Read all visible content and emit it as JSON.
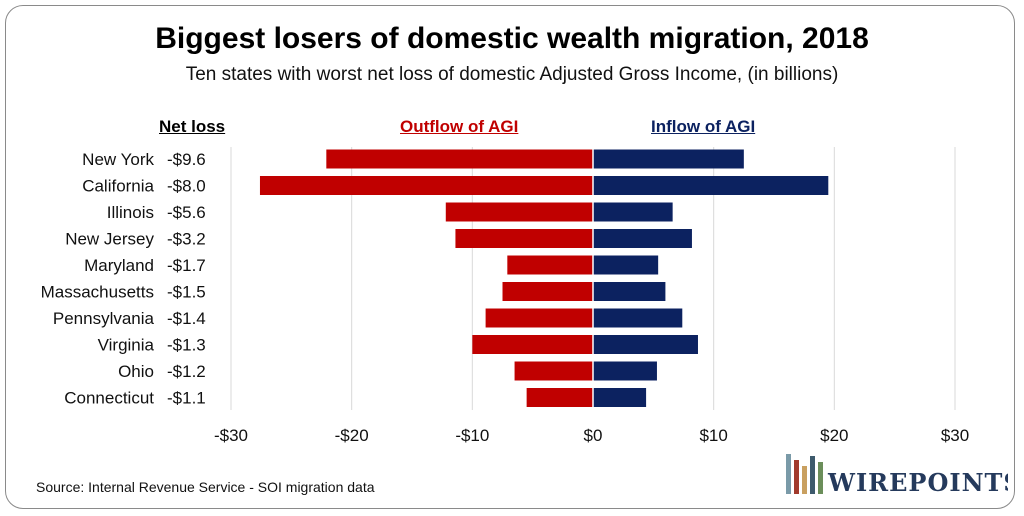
{
  "title": "Biggest losers of domestic wealth migration, 2018",
  "subtitle": "Ten states with worst net loss of domestic Adjusted Gross Income, (in billions)",
  "headers": {
    "net_loss": "Net loss",
    "outflow": "Outflow of AGI",
    "inflow": "Inflow of AGI"
  },
  "source": "Source: Internal Revenue Service - SOI migration data",
  "logo": {
    "text": "WIREPOINTS"
  },
  "chart_data": {
    "type": "bar",
    "orientation": "horizontal",
    "categories": [
      "New York",
      "California",
      "Illinois",
      "New Jersey",
      "Maryland",
      "Massachusetts",
      "Pennsylvania",
      "Virginia",
      "Ohio",
      "Connecticut"
    ],
    "net_loss_labels": [
      "-$9.6",
      "-$8.0",
      "-$5.6",
      "-$3.2",
      "-$1.7",
      "-$1.5",
      "-$1.4",
      "-$1.3",
      "-$1.2",
      "-$1.1"
    ],
    "series": [
      {
        "name": "Outflow of AGI",
        "color": "#c00000",
        "values": [
          -22.1,
          -27.6,
          -12.2,
          -11.4,
          -7.1,
          -7.5,
          -8.9,
          -10.0,
          -6.5,
          -5.5
        ]
      },
      {
        "name": "Inflow of AGI",
        "color": "#0c2260",
        "values": [
          12.5,
          19.5,
          6.6,
          8.2,
          5.4,
          6.0,
          7.4,
          8.7,
          5.3,
          4.4
        ]
      }
    ],
    "xlim": [
      -30,
      30
    ],
    "xticks": [
      -30,
      -20,
      -10,
      0,
      10,
      20,
      30
    ],
    "xtick_labels": [
      "-$30",
      "-$20",
      "-$10",
      "$0",
      "$10",
      "$20",
      "$30"
    ],
    "grid": true,
    "colors": {
      "outflow": "#c00000",
      "inflow": "#0c2260",
      "grid": "#d9d9d9"
    }
  }
}
